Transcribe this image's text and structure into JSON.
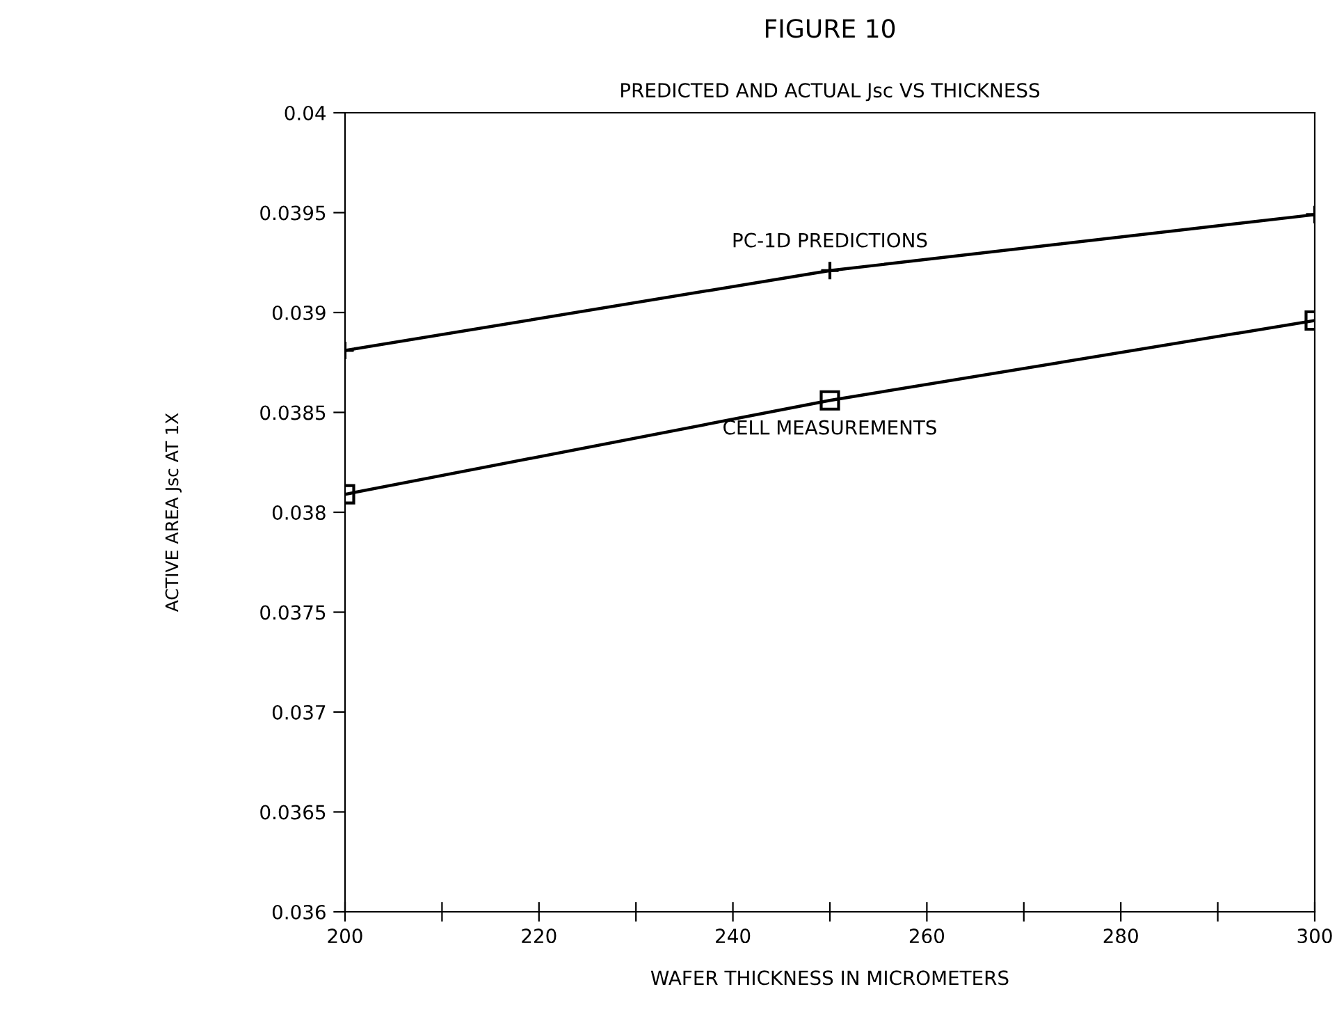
{
  "chart_data": {
    "type": "line",
    "title": "FIGURE 10",
    "subtitle": "PREDICTED AND ACTUAL Jsc VS THICKNESS",
    "xlabel": "WAFER THICKNESS IN MICROMETERS",
    "ylabel": "ACTIVE AREA Jsc AT 1X",
    "x": [
      200,
      250,
      300
    ],
    "series": [
      {
        "name": "PC-1D PREDICTIONS",
        "color": "#000000",
        "marker": "cross",
        "values": [
          0.03881,
          0.03921,
          0.03949
        ]
      },
      {
        "name": "CELL MEASUREMENTS",
        "color": "#000000",
        "marker": "square",
        "values": [
          0.03809,
          0.03856,
          0.03896
        ]
      }
    ],
    "xlim": [
      200,
      300
    ],
    "ylim": [
      0.036,
      0.04
    ],
    "xticks": [
      200,
      {
        "value": 210,
        "label": null
      },
      220,
      {
        "value": 230,
        "label": null
      },
      240,
      {
        "value": 250,
        "label": null
      },
      260,
      {
        "value": 270,
        "label": null
      },
      280,
      {
        "value": 290,
        "label": null
      },
      300
    ],
    "yticks": [
      0.036,
      0.0365,
      0.037,
      0.0375,
      0.038,
      0.0385,
      0.039,
      0.0395,
      0.04
    ],
    "grid": false,
    "legend": false,
    "line_style": "solid"
  }
}
